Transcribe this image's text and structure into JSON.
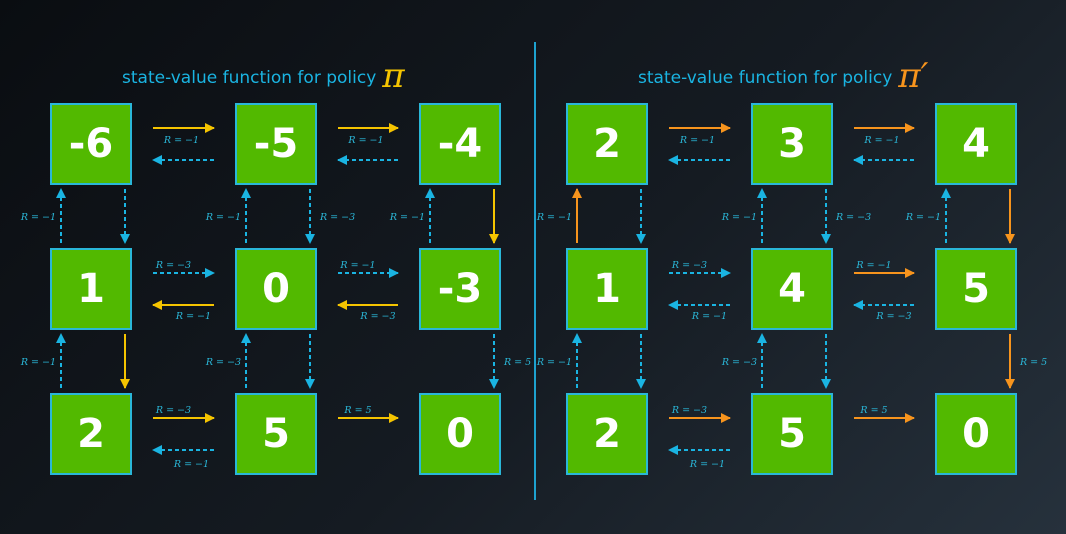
{
  "colors": {
    "box_fill": "#52b900",
    "box_border": "#2ab7d8",
    "title": "#1ab4e2",
    "pi_symbol": "#f5c400",
    "pi_prime_symbol": "#f7941d",
    "policy_pi_arrow": "#f5c400",
    "policy_pi_prime_arrow": "#f7941d",
    "other_arrow": "#1ab4e2"
  },
  "panels": [
    {
      "title_text": "state-value function for policy",
      "symbol": "π",
      "policy_color": "#f5c400",
      "values": [
        [
          "-6",
          "-5",
          "-4"
        ],
        [
          "1",
          "0",
          "-3"
        ],
        [
          "2",
          "5",
          "0"
        ]
      ]
    },
    {
      "title_text": "state-value function for policy",
      "symbol": "π′",
      "policy_color": "#f7941d",
      "values": [
        [
          "2",
          "3",
          "4"
        ],
        [
          "1",
          "4",
          "5"
        ],
        [
          "2",
          "5",
          "0"
        ]
      ]
    }
  ],
  "transitions": [
    {
      "from": [
        0,
        0
      ],
      "to": [
        0,
        1
      ],
      "reward": "R = −1"
    },
    {
      "from": [
        0,
        1
      ],
      "to": [
        0,
        0
      ],
      "reward": ""
    },
    {
      "from": [
        0,
        1
      ],
      "to": [
        0,
        2
      ],
      "reward": "R = −1"
    },
    {
      "from": [
        0,
        2
      ],
      "to": [
        0,
        1
      ],
      "reward": ""
    },
    {
      "from": [
        1,
        0
      ],
      "to": [
        1,
        1
      ],
      "reward": "R = −3"
    },
    {
      "from": [
        1,
        1
      ],
      "to": [
        1,
        0
      ],
      "reward": "R = −1"
    },
    {
      "from": [
        1,
        1
      ],
      "to": [
        1,
        2
      ],
      "reward": "R = −1"
    },
    {
      "from": [
        1,
        2
      ],
      "to": [
        1,
        1
      ],
      "reward": "R = −3"
    },
    {
      "from": [
        2,
        0
      ],
      "to": [
        2,
        1
      ],
      "reward": "R = −3"
    },
    {
      "from": [
        2,
        1
      ],
      "to": [
        2,
        0
      ],
      "reward": "R = −1"
    },
    {
      "from": [
        2,
        1
      ],
      "to": [
        2,
        2
      ],
      "reward": "R = 5"
    },
    {
      "from": [
        1,
        0
      ],
      "to": [
        0,
        0
      ],
      "reward": "R = −1"
    },
    {
      "from": [
        0,
        0
      ],
      "to": [
        1,
        0
      ],
      "reward": ""
    },
    {
      "from": [
        1,
        1
      ],
      "to": [
        0,
        1
      ],
      "reward": "R = −1"
    },
    {
      "from": [
        0,
        1
      ],
      "to": [
        1,
        1
      ],
      "reward": "R = −3"
    },
    {
      "from": [
        1,
        2
      ],
      "to": [
        0,
        2
      ],
      "reward": "R = −1"
    },
    {
      "from": [
        0,
        2
      ],
      "to": [
        1,
        2
      ],
      "reward": ""
    },
    {
      "from": [
        2,
        0
      ],
      "to": [
        1,
        0
      ],
      "reward": "R = −1"
    },
    {
      "from": [
        1,
        0
      ],
      "to": [
        2,
        0
      ],
      "reward": ""
    },
    {
      "from": [
        2,
        1
      ],
      "to": [
        1,
        1
      ],
      "reward": "R = −3"
    },
    {
      "from": [
        1,
        1
      ],
      "to": [
        2,
        1
      ],
      "reward": ""
    },
    {
      "from": [
        1,
        2
      ],
      "to": [
        2,
        2
      ],
      "reward": "R = 5"
    }
  ],
  "policies": [
    [
      [
        "0,0",
        "0,1"
      ],
      [
        "0,1",
        "0,2"
      ],
      [
        "0,2",
        "1,2"
      ],
      [
        "1,2",
        "1,1"
      ],
      [
        "1,1",
        "1,0"
      ],
      [
        "1,0",
        "2,0"
      ],
      [
        "2,0",
        "2,1"
      ],
      [
        "2,1",
        "2,2"
      ]
    ],
    [
      [
        "1,0",
        "0,0"
      ],
      [
        "0,0",
        "0,1"
      ],
      [
        "0,1",
        "0,2"
      ],
      [
        "0,2",
        "1,2"
      ],
      [
        "1,1",
        "1,2"
      ],
      [
        "1,2",
        "2,2"
      ],
      [
        "2,0",
        "2,1"
      ],
      [
        "2,1",
        "2,2"
      ]
    ]
  ]
}
